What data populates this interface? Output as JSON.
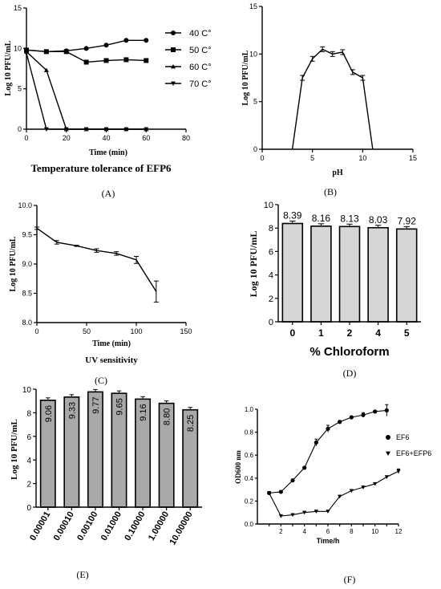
{
  "chart_data": [
    {
      "id": "A",
      "type": "line",
      "caption": "(A)",
      "subtitle": "Temperature tolerance of EFP6",
      "xlabel": "Time (min)",
      "ylabel": "Log 10 PFU/mL",
      "xlim": [
        0,
        80
      ],
      "ylim": [
        0,
        15
      ],
      "xticks": [
        0,
        20,
        40,
        60,
        80
      ],
      "yticks": [
        0,
        5,
        10,
        15
      ],
      "legend_position": "right",
      "series": [
        {
          "name": "40 C°",
          "marker": "circle",
          "x": [
            0,
            10,
            20,
            30,
            40,
            50,
            60
          ],
          "y": [
            9.8,
            9.6,
            9.7,
            10.0,
            10.4,
            11.0,
            11.0
          ]
        },
        {
          "name": "50 C°",
          "marker": "square",
          "x": [
            0,
            10,
            20,
            30,
            40,
            50,
            60
          ],
          "y": [
            9.8,
            9.6,
            9.6,
            8.3,
            8.5,
            8.6,
            8.5
          ]
        },
        {
          "name": "60 C°",
          "marker": "triangle",
          "x": [
            0,
            10,
            20,
            30,
            40,
            50,
            60
          ],
          "y": [
            9.6,
            7.3,
            0,
            0,
            0,
            0,
            0
          ]
        },
        {
          "name": "70 C°",
          "marker": "tri-down",
          "x": [
            0,
            10,
            20,
            30,
            40,
            50,
            60
          ],
          "y": [
            9.4,
            0,
            0,
            0,
            0,
            0,
            0
          ]
        }
      ]
    },
    {
      "id": "B",
      "type": "line",
      "caption": "(B)",
      "xlabel": "pH",
      "ylabel": "Log 10 PFU/mL",
      "xlim": [
        0,
        15
      ],
      "ylim": [
        0,
        15
      ],
      "xticks": [
        0,
        5,
        10,
        15
      ],
      "yticks": [
        0,
        5,
        10,
        15
      ],
      "series": [
        {
          "x": [
            3,
            4,
            5,
            6,
            7,
            8,
            9,
            10,
            11
          ],
          "y": [
            0,
            7.5,
            9.5,
            10.5,
            10.0,
            10.2,
            8.1,
            7.5,
            0
          ]
        }
      ]
    },
    {
      "id": "C",
      "type": "line",
      "caption": "(C)",
      "subtitle": "UV sensitivity",
      "xlabel": "Time (min)",
      "ylabel": "Log 10 PFU/mL",
      "xlim": [
        0,
        150
      ],
      "ylim": [
        8.0,
        10.0
      ],
      "xticks": [
        0,
        50,
        100,
        150
      ],
      "yticks": [
        8.0,
        8.5,
        9.0,
        9.5,
        10.0
      ],
      "series": [
        {
          "x": [
            0,
            20,
            40,
            60,
            80,
            100,
            120
          ],
          "y": [
            9.61,
            9.37,
            9.31,
            9.23,
            9.18,
            9.07,
            8.53
          ]
        }
      ]
    },
    {
      "id": "D",
      "type": "bar",
      "caption": "(D)",
      "xlabel": "% Chloroform",
      "ylabel": "Log 10 PFU/mL",
      "ylim": [
        0,
        10
      ],
      "yticks": [
        0,
        2,
        4,
        6,
        8,
        10
      ],
      "categories": [
        "0",
        "1",
        "2",
        "4",
        "5"
      ],
      "values": [
        8.39,
        8.16,
        8.13,
        8.03,
        7.92
      ],
      "labels": [
        "8.39",
        "8.16",
        "8.13",
        "8.03",
        "7.92"
      ]
    },
    {
      "id": "E",
      "type": "bar",
      "caption": "(E)",
      "ylabel": "Log 10 PFU/mL",
      "ylim": [
        0,
        10
      ],
      "yticks": [
        0,
        2,
        4,
        6,
        8,
        10
      ],
      "categories": [
        "0.00001",
        "0.00010",
        "0.00100",
        "0.01000",
        "0.10000",
        "1.00000",
        "10.00000"
      ],
      "values": [
        9.06,
        9.33,
        9.77,
        9.65,
        9.16,
        8.8,
        8.25
      ],
      "labels": [
        "9.06",
        "9.33",
        "9.77",
        "9.65",
        "9.16",
        "8.80",
        "8.25"
      ]
    },
    {
      "id": "F",
      "type": "line",
      "caption": "(F)",
      "xlabel": "Time/h",
      "ylabel": "OD600 nm",
      "xlim": [
        0,
        12
      ],
      "ylim": [
        0,
        1.0
      ],
      "xticks": [
        2,
        4,
        6,
        8,
        10,
        12
      ],
      "yticks": [
        0.0,
        0.2,
        0.4,
        0.6,
        0.8,
        1.0
      ],
      "legend_position": "right",
      "series": [
        {
          "name": "EF6",
          "marker": "circle",
          "x": [
            1,
            2,
            3,
            4,
            5,
            6,
            7,
            8,
            9,
            10,
            11
          ],
          "y": [
            0.27,
            0.28,
            0.38,
            0.49,
            0.71,
            0.83,
            0.89,
            0.93,
            0.95,
            0.98,
            0.99
          ]
        },
        {
          "name": "EF6+EFP6",
          "marker": "tri-down",
          "x": [
            1,
            2,
            3,
            4,
            5,
            6,
            7,
            8,
            9,
            10,
            11,
            12
          ],
          "y": [
            0.27,
            0.07,
            0.08,
            0.1,
            0.11,
            0.11,
            0.24,
            0.29,
            0.32,
            0.35,
            0.41,
            0.46
          ]
        }
      ]
    }
  ]
}
